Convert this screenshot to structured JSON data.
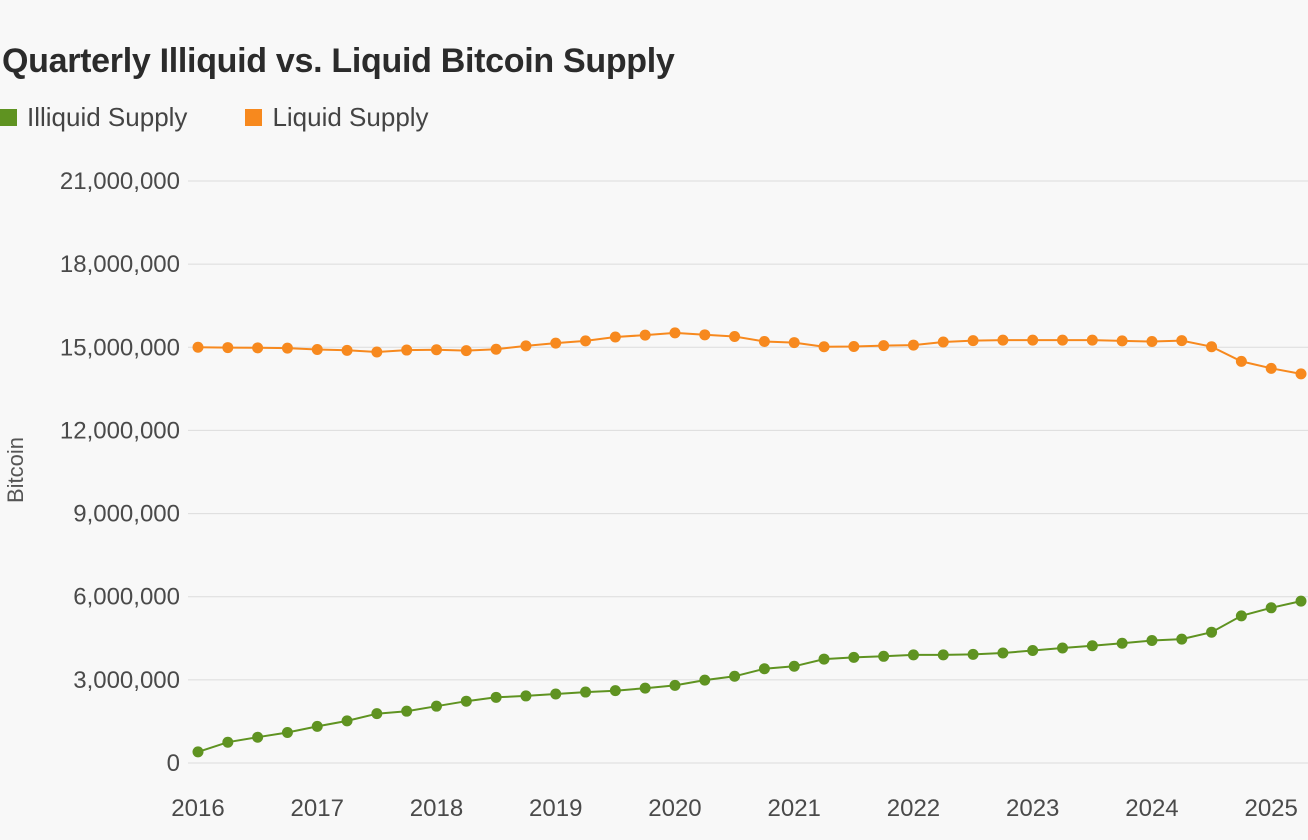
{
  "chart_data": {
    "type": "line",
    "title": "Quarterly Illiquid vs. Liquid Bitcoin Supply",
    "xlabel": "",
    "ylabel": "Bitcoin",
    "ylim": [
      0,
      21000000
    ],
    "yticks": [
      0,
      3000000,
      6000000,
      9000000,
      12000000,
      15000000,
      18000000,
      21000000
    ],
    "ytick_labels": [
      "0",
      "3,000,000",
      "6,000,000",
      "9,000,000",
      "12,000,000",
      "15,000,000",
      "18,000,000",
      "21,000,000"
    ],
    "xlim": [
      2016,
      2025.3
    ],
    "xticks": [
      "2016",
      "2017",
      "2018",
      "2019",
      "2020",
      "2021",
      "2022",
      "2023",
      "2024",
      "2025"
    ],
    "grid": true,
    "legend_position": "top-left",
    "x": [
      2016.0,
      2016.25,
      2016.5,
      2016.75,
      2017.0,
      2017.25,
      2017.5,
      2017.75,
      2018.0,
      2018.25,
      2018.5,
      2018.75,
      2019.0,
      2019.25,
      2019.5,
      2019.75,
      2020.0,
      2020.25,
      2020.5,
      2020.75,
      2021.0,
      2021.25,
      2021.5,
      2021.75,
      2022.0,
      2022.25,
      2022.5,
      2022.75,
      2023.0,
      2023.25,
      2023.5,
      2023.75,
      2024.0,
      2024.25,
      2024.5,
      2024.75,
      2025.0,
      2025.25
    ],
    "series": [
      {
        "name": "Illiquid Supply",
        "color": "#5f9321",
        "values": [
          400000,
          750000,
          930000,
          1100000,
          1320000,
          1520000,
          1780000,
          1870000,
          2050000,
          2230000,
          2370000,
          2420000,
          2490000,
          2560000,
          2610000,
          2700000,
          2800000,
          2990000,
          3130000,
          3400000,
          3490000,
          3750000,
          3810000,
          3850000,
          3900000,
          3900000,
          3920000,
          3970000,
          4060000,
          4150000,
          4230000,
          4320000,
          4420000,
          4470000,
          4720000,
          5310000,
          5600000,
          5840000
        ]
      },
      {
        "name": "Liquid Supply",
        "color": "#f7891e",
        "values": [
          15000000,
          14990000,
          14980000,
          14970000,
          14920000,
          14890000,
          14830000,
          14900000,
          14910000,
          14880000,
          14930000,
          15050000,
          15150000,
          15230000,
          15370000,
          15440000,
          15520000,
          15450000,
          15390000,
          15210000,
          15170000,
          15020000,
          15030000,
          15060000,
          15080000,
          15190000,
          15240000,
          15260000,
          15260000,
          15260000,
          15260000,
          15230000,
          15210000,
          15240000,
          15020000,
          14490000,
          14240000,
          14040000
        ]
      }
    ]
  }
}
